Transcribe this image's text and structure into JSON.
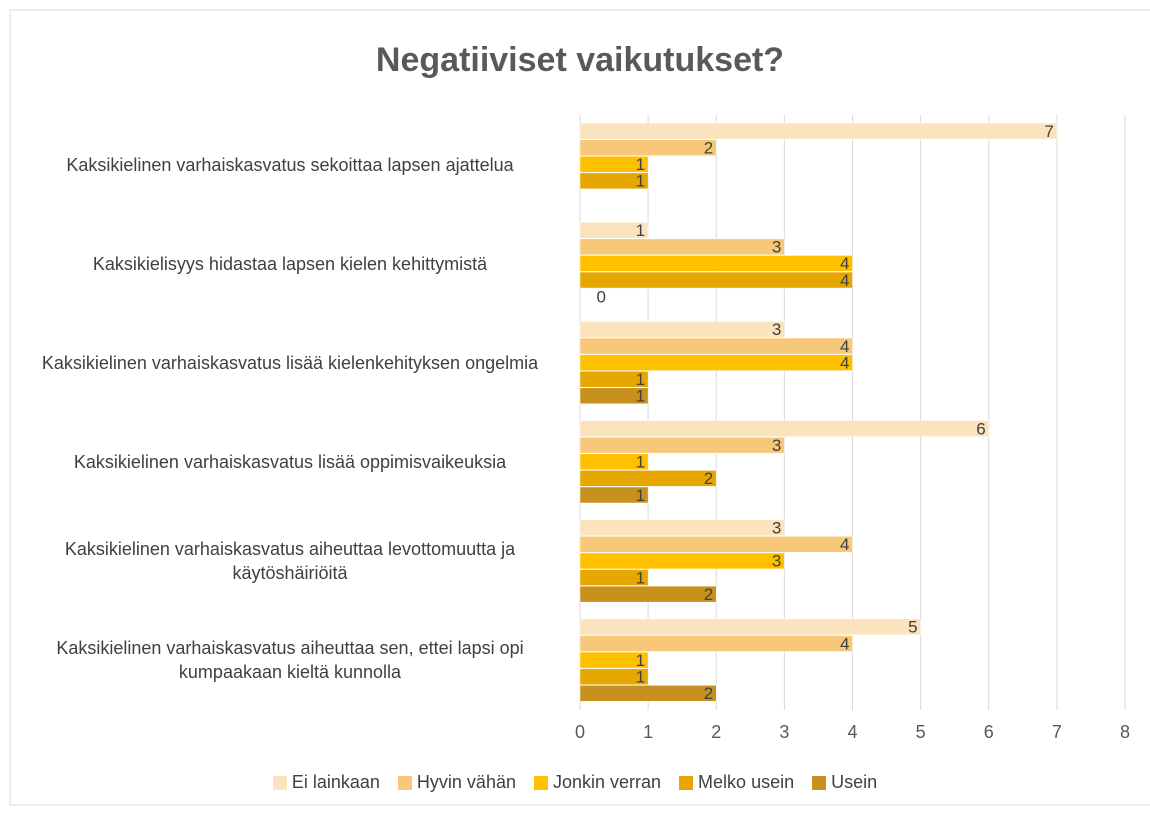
{
  "chart_data": {
    "type": "hbar",
    "title": "Negatiiviset vaikutukset?",
    "categories": [
      "Kaksikielinen varhaiskasvatus sekoittaa lapsen ajattelua",
      "Kaksikielisyys hidastaa lapsen kielen kehittymistä",
      "Kaksikielinen varhaiskasvatus lisää kielenkehityksen ongelmia",
      "Kaksikielinen varhaiskasvatus lisää oppimisvaikeuksia",
      "Kaksikielinen varhaiskasvatus aiheuttaa levottomuutta ja käytöshäiriöitä",
      "Kaksikielinen varhaiskasvatus aiheuttaa sen, ettei lapsi opi kumpaakaan kieltä kunnolla"
    ],
    "series": [
      {
        "name": "Ei lainkaan",
        "color": "#fbe3bd",
        "values": [
          7,
          1,
          3,
          6,
          3,
          5
        ]
      },
      {
        "name": "Hyvin vähän",
        "color": "#f8c87a",
        "values": [
          2,
          3,
          4,
          3,
          4,
          4
        ]
      },
      {
        "name": "Jonkin verran",
        "color": "#ffc000",
        "values": [
          1,
          4,
          4,
          1,
          3,
          1
        ]
      },
      {
        "name": "Melko usein",
        "color": "#e6a700",
        "values": [
          1,
          4,
          1,
          2,
          1,
          1
        ]
      },
      {
        "name": "Usein",
        "color": "#c8901c",
        "values": [
          null,
          0,
          1,
          1,
          2,
          2
        ]
      }
    ],
    "xlim": [
      0,
      8
    ],
    "xticks": [
      0,
      1,
      2,
      3,
      4,
      5,
      6,
      7,
      8
    ],
    "grid": true,
    "legend": "bottom"
  }
}
